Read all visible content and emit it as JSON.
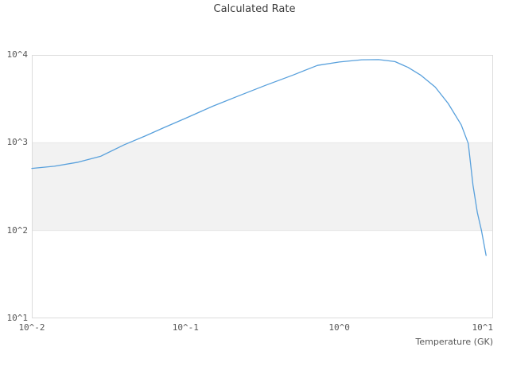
{
  "chart": {
    "title": "Calculated Rate",
    "x_axis_label": "Temperature (GK)"
  },
  "chart_data": {
    "type": "line",
    "title": "Calculated Rate",
    "xlabel": "Temperature (GK)",
    "ylabel": "",
    "x_scale": "log",
    "y_scale": "log",
    "xlim": [
      0.01,
      10
    ],
    "ylim": [
      10,
      10000
    ],
    "x_ticks": [
      {
        "value": 0.01,
        "label": "10^-2"
      },
      {
        "value": 0.1,
        "label": "10^-1"
      },
      {
        "value": 1,
        "label": "10^0"
      },
      {
        "value": 10,
        "label": "10^1"
      }
    ],
    "y_ticks": [
      {
        "value": 10000,
        "label": "10^4"
      },
      {
        "value": 1000,
        "label": "10^3"
      },
      {
        "value": 100,
        "label": "10^2"
      },
      {
        "value": 10,
        "label": "10^1"
      }
    ],
    "grid": false,
    "legend": false,
    "band": {
      "y_min": 100,
      "y_max": 1000,
      "fill_color": "#f2f2f2",
      "edge_color": "#e7e7e7"
    },
    "border_color": "#dcdcdc",
    "line_color": "#58a0dc",
    "series": [
      {
        "name": "calculated rate",
        "points": [
          [
            0.01,
            510
          ],
          [
            0.014,
            540
          ],
          [
            0.02,
            600
          ],
          [
            0.028,
            700
          ],
          [
            0.04,
            950
          ],
          [
            0.055,
            1200
          ],
          [
            0.072,
            1480
          ],
          [
            0.1,
            1900
          ],
          [
            0.15,
            2600
          ],
          [
            0.22,
            3400
          ],
          [
            0.33,
            4500
          ],
          [
            0.5,
            5900
          ],
          [
            0.72,
            7600
          ],
          [
            1.0,
            8300
          ],
          [
            1.4,
            8800
          ],
          [
            1.8,
            8850
          ],
          [
            2.3,
            8400
          ],
          [
            2.8,
            7200
          ],
          [
            3.4,
            5850
          ],
          [
            4.2,
            4300
          ],
          [
            5.1,
            2800
          ],
          [
            6.2,
            1600
          ],
          [
            6.9,
            980
          ],
          [
            7.4,
            330
          ],
          [
            7.9,
            160
          ],
          [
            8.4,
            100
          ],
          [
            9.0,
            52
          ]
        ]
      }
    ]
  }
}
